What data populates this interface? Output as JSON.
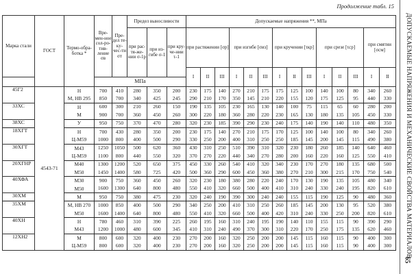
{
  "running_head": "Продолжение табл. 15",
  "sidebar": {
    "title": "ДОПУСКАЕМЫЕ НАПРЯЖЕНИЯ И МЕХАНИЧЕСКИЕ СВОЙСТВА МАТЕРИАЛОВ",
    "page": "65"
  },
  "header": {
    "steel": "Марка стали",
    "gost": "ГОСТ",
    "treatment": "Термо-обра-ботка *",
    "sigma_b": "Вре-мен-ное сол-ро-тив-ление σв",
    "sigma_t": "Пре-дел те-ку-чес-ти σт",
    "endurance": "Предел выносливости",
    "end_tension": "при рас-тя-же-нии σ-1р",
    "end_bending": "при из-гибе σ-1",
    "end_torsion": "при кру-че-нии τ-1",
    "allowable": "Допускаемые напряжения **, МПа",
    "tension": "при растяжении [σр]",
    "bending": "при изгибе [σиз]",
    "torsion": "при кручении [τкр]",
    "shear": "при срезе [τср]",
    "crushing": "при смятии [σсм]",
    "unit": "МПа",
    "levels3": [
      "I",
      "II",
      "III"
    ],
    "levels2": [
      "I",
      "II"
    ]
  },
  "gost_value": "4543-71",
  "rows": [
    {
      "steel": "45Г2",
      "treat": "Н",
      "v": [
        "700",
        "410",
        "280",
        "350",
        "200",
        "230",
        "175",
        "140",
        "270",
        "210",
        "175",
        "175",
        "125",
        "100",
        "140",
        "100",
        "80",
        "340",
        "260"
      ]
    },
    {
      "steel": "",
      "treat": "М, НВ 295",
      "v": [
        "850",
        "700",
        "340",
        "425",
        "245",
        "290",
        "210",
        "170",
        "350",
        "145",
        "210",
        "220",
        "155",
        "120",
        "175",
        "125",
        "95",
        "440",
        "330"
      ]
    },
    {
      "steel": "33ХС",
      "treat": "Н",
      "v": [
        "600",
        "300",
        "210",
        "260",
        "150",
        "190",
        "135",
        "105",
        "230",
        "165",
        "130",
        "140",
        "100",
        "75",
        "115",
        "65",
        "60",
        "280",
        "200"
      ]
    },
    {
      "steel": "",
      "treat": "М",
      "v": [
        "900",
        "700",
        "360",
        "450",
        "260",
        "300",
        "220",
        "180",
        "360",
        "280",
        "220",
        "230",
        "165",
        "130",
        "180",
        "135",
        "105",
        "450",
        "330"
      ]
    },
    {
      "steel": "38ХС",
      "treat": "У",
      "v": [
        "950",
        "750",
        "370",
        "470",
        "280",
        "320",
        "230",
        "185",
        "390",
        "290",
        "230",
        "240",
        "175",
        "140",
        "190",
        "140",
        "110",
        "480",
        "350"
      ]
    },
    {
      "steel": "18ХГТ",
      "treat": "Н",
      "v": [
        "700",
        "430",
        "280",
        "350",
        "200",
        "230",
        "175",
        "140",
        "270",
        "210",
        "175",
        "170",
        "125",
        "100",
        "140",
        "100",
        "80",
        "340",
        "260"
      ]
    },
    {
      "steel": "",
      "treat": "Ц-М59",
      "v": [
        "1000",
        "800",
        "400",
        "500",
        "290",
        "330",
        "250",
        "200",
        "400",
        "310",
        "250",
        "250",
        "185",
        "145",
        "200",
        "145",
        "115",
        "490",
        "380"
      ]
    },
    {
      "steel": "30ХГТ",
      "treat": "М43",
      "v": [
        "1250",
        "1050",
        "500",
        "620",
        "360",
        "430",
        "310",
        "250",
        "510",
        "390",
        "310",
        "320",
        "230",
        "180",
        "260",
        "185",
        "140",
        "640",
        "460"
      ]
    },
    {
      "steel": "",
      "treat": "Ц-М59",
      "v": [
        "1100",
        "800",
        "440",
        "550",
        "320",
        "370",
        "270",
        "220",
        "440",
        "340",
        "270",
        "280",
        "200",
        "160",
        "220",
        "160",
        "125",
        "550",
        "410"
      ]
    },
    {
      "steel": "20ХГНР",
      "treat": "М40",
      "v": [
        "1300",
        "1200",
        "520",
        "650",
        "375",
        "450",
        "330",
        "260",
        "540",
        "410",
        "320",
        "340",
        "230",
        "170",
        "270",
        "180",
        "135",
        "680",
        "500"
      ]
    },
    {
      "steel": "",
      "treat": "М50",
      "v": [
        "1450",
        "1400",
        "580",
        "725",
        "420",
        "500",
        "360",
        "290",
        "600",
        "450",
        "360",
        "380",
        "270",
        "210",
        "300",
        "215",
        "170",
        "750",
        "540"
      ]
    },
    {
      "steel": "40ХФА",
      "treat": "М30",
      "v": [
        "900",
        "750",
        "360",
        "450",
        "260",
        "320",
        "230",
        "180",
        "380",
        "280",
        "220",
        "240",
        "170",
        "130",
        "190",
        "135",
        "105",
        "480",
        "340"
      ]
    },
    {
      "steel": "",
      "treat": "М50",
      "v": [
        "1600",
        "1300",
        "640",
        "800",
        "480",
        "550",
        "410",
        "320",
        "660",
        "500",
        "400",
        "410",
        "310",
        "240",
        "330",
        "240",
        "195",
        "820",
        "610"
      ]
    },
    {
      "steel": "30ХМ",
      "treat": "М",
      "v": [
        "950",
        "750",
        "380",
        "475",
        "230",
        "320",
        "240",
        "190",
        "390",
        "300",
        "240",
        "240",
        "155",
        "115",
        "190",
        "125",
        "90",
        "480",
        "360"
      ]
    },
    {
      "steel": "35ХМ",
      "treat": "М, НВ 270",
      "v": [
        "1000",
        "850",
        "400",
        "500",
        "290",
        "340",
        "250",
        "200",
        "410",
        "310",
        "250",
        "260",
        "185",
        "145",
        "200",
        "130",
        "95",
        "520",
        "380"
      ]
    },
    {
      "steel": "",
      "treat": "М50",
      "v": [
        "1600",
        "1400",
        "640",
        "800",
        "480",
        "550",
        "410",
        "320",
        "660",
        "500",
        "400",
        "420",
        "310",
        "240",
        "330",
        "250",
        "200",
        "820",
        "610"
      ]
    },
    {
      "steel": "40ХН",
      "treat": "Н",
      "v": [
        "780",
        "460",
        "310",
        "390",
        "225",
        "260",
        "195",
        "160",
        "310",
        "240",
        "195",
        "190",
        "140",
        "110",
        "155",
        "115",
        "90",
        "390",
        "290"
      ]
    },
    {
      "steel": "",
      "treat": "М43",
      "v": [
        "1200",
        "1000",
        "480",
        "600",
        "345",
        "410",
        "310",
        "240",
        "490",
        "370",
        "300",
        "310",
        "220",
        "170",
        "250",
        "175",
        "135",
        "620",
        "460"
      ]
    },
    {
      "steel": "12ХН2",
      "treat": "М",
      "v": [
        "800",
        "600",
        "320",
        "400",
        "230",
        "270",
        "200",
        "160",
        "320",
        "250",
        "200",
        "200",
        "145",
        "115",
        "160",
        "115",
        "90",
        "400",
        "300"
      ]
    },
    {
      "steel": "",
      "treat": "Ц-М59",
      "v": [
        "800",
        "600",
        "320",
        "400",
        "230",
        "270",
        "200",
        "160",
        "320",
        "250",
        "200",
        "200",
        "145",
        "115",
        "160",
        "115",
        "90",
        "400",
        "300"
      ]
    }
  ]
}
